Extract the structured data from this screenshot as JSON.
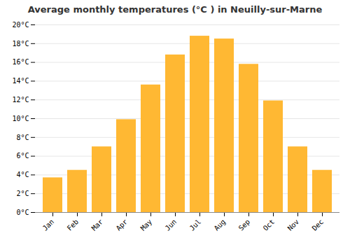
{
  "chart_data": {
    "type": "bar",
    "title": "Average monthly temperatures (°C ) in Neuilly-sur-Marne",
    "categories": [
      "Jan",
      "Feb",
      "Mar",
      "Apr",
      "May",
      "Jun",
      "Jul",
      "Aug",
      "Sep",
      "Oct",
      "Nov",
      "Dec"
    ],
    "values": [
      3.7,
      4.5,
      7.0,
      9.9,
      13.6,
      16.8,
      18.8,
      18.5,
      15.8,
      11.9,
      7.0,
      4.5
    ],
    "color": "#FFB833",
    "ylim": [
      0,
      20
    ],
    "yticks": [
      {
        "value": 0,
        "label": "0°C"
      },
      {
        "value": 2,
        "label": "2°C"
      },
      {
        "value": 4,
        "label": "4°C"
      },
      {
        "value": 6,
        "label": "6°C"
      },
      {
        "value": 8,
        "label": "8°C"
      },
      {
        "value": 10,
        "label": "10°C"
      },
      {
        "value": 12,
        "label": "12°C"
      },
      {
        "value": 14,
        "label": "14°C"
      },
      {
        "value": 16,
        "label": "16°C"
      },
      {
        "value": 18,
        "label": "18°C"
      },
      {
        "value": 20,
        "label": "20°C"
      }
    ],
    "grid": true
  }
}
